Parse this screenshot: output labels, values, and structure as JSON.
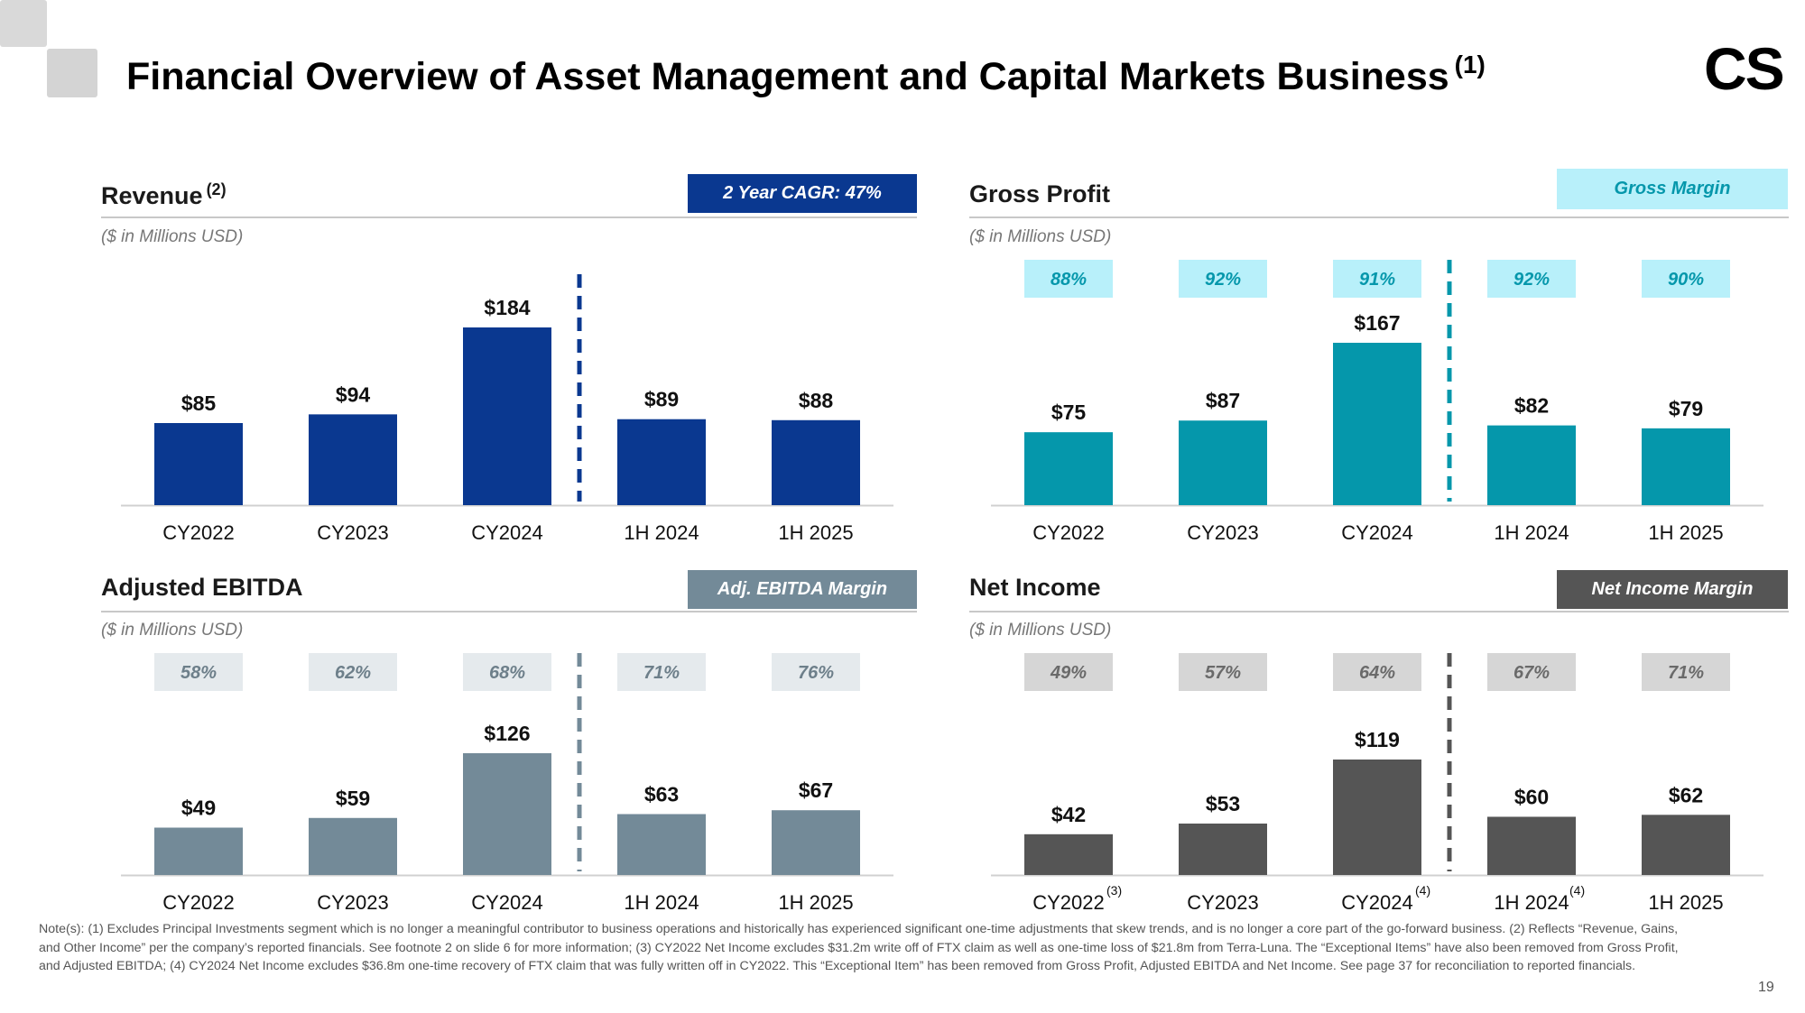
{
  "header": {
    "title": "Financial Overview of Asset Management and Capital Markets Business",
    "title_note": "(1)",
    "brand": "CS"
  },
  "colors": {
    "revenue": "#0a3890",
    "gross_profit": "#0597ab",
    "gross_margin_badge": "#b8f0fa",
    "ebitda": "#738a98",
    "ebitda_margin_badge": "#e5eaed",
    "net_income": "#555555",
    "net_margin_badge": "#d6d6d6"
  },
  "panels": {
    "revenue": {
      "title": "Revenue",
      "title_note": "(2)",
      "units": "($ in Millions USD)",
      "tag": "2 Year CAGR: 47%"
    },
    "gross_profit": {
      "title": "Gross Profit",
      "units": "($ in Millions USD)",
      "tag": "Gross Margin"
    },
    "ebitda": {
      "title": "Adjusted EBITDA",
      "units": "($ in Millions USD)",
      "tag": "Adj. EBITDA Margin"
    },
    "net_income": {
      "title": "Net Income",
      "units": "($ in Millions USD)",
      "tag": "Net Income Margin"
    }
  },
  "chart_data": [
    {
      "id": "revenue",
      "type": "bar",
      "title": "Revenue",
      "ylabel": "$ in Millions USD",
      "categories": [
        "CY2022",
        "CY2023",
        "CY2024",
        "1H 2024",
        "1H 2025"
      ],
      "category_notes": [
        "",
        "",
        "",
        "",
        ""
      ],
      "values": [
        85,
        94,
        184,
        89,
        88
      ],
      "value_labels": [
        "$85",
        "$94",
        "$184",
        "$89",
        "$88"
      ],
      "margins": [],
      "ylim": [
        0,
        184
      ]
    },
    {
      "id": "gross_profit",
      "type": "bar",
      "title": "Gross Profit",
      "ylabel": "$ in Millions USD",
      "categories": [
        "CY2022",
        "CY2023",
        "CY2024",
        "1H 2024",
        "1H 2025"
      ],
      "category_notes": [
        "",
        "",
        "",
        "",
        ""
      ],
      "values": [
        75,
        87,
        167,
        82,
        79
      ],
      "value_labels": [
        "$75",
        "$87",
        "$167",
        "$82",
        "$79"
      ],
      "margins": [
        "88%",
        "92%",
        "91%",
        "92%",
        "90%"
      ],
      "ylim": [
        0,
        167
      ]
    },
    {
      "id": "ebitda",
      "type": "bar",
      "title": "Adjusted EBITDA",
      "ylabel": "$ in Millions USD",
      "categories": [
        "CY2022",
        "CY2023",
        "CY2024",
        "1H 2024",
        "1H 2025"
      ],
      "category_notes": [
        "",
        "",
        "",
        "",
        ""
      ],
      "values": [
        49,
        59,
        126,
        63,
        67
      ],
      "value_labels": [
        "$49",
        "$59",
        "$126",
        "$63",
        "$67"
      ],
      "margins": [
        "58%",
        "62%",
        "68%",
        "71%",
        "76%"
      ],
      "ylim": [
        0,
        126
      ]
    },
    {
      "id": "net_income",
      "type": "bar",
      "title": "Net Income",
      "ylabel": "$ in Millions USD",
      "categories": [
        "CY2022",
        "CY2023",
        "CY2024",
        "1H 2024",
        "1H 2025"
      ],
      "category_notes": [
        "(3)",
        "",
        "(4)",
        "(4)",
        ""
      ],
      "values": [
        42,
        53,
        119,
        60,
        62
      ],
      "value_labels": [
        "$42",
        "$53",
        "$119",
        "$60",
        "$62"
      ],
      "margins": [
        "49%",
        "57%",
        "64%",
        "67%",
        "71%"
      ],
      "ylim": [
        0,
        119
      ]
    }
  ],
  "footnote": "Note(s): (1) Excludes Principal Investments segment which is no longer a meaningful contributor to business operations and historically has experienced significant one-time adjustments that skew trends, and is no longer a core part of the go-forward business. (2) Reflects “Revenue, Gains, and Other Income” per the company’s reported financials. See footnote 2 on slide 6 for more information; (3) CY2022 Net Income excludes $31.2m write off of FTX claim as well as one-time loss of $21.8m from Terra-Luna. The “Exceptional Items” have also been removed from Gross Profit, and Adjusted EBITDA; (4) CY2024 Net Income excludes $36.8m one-time recovery of FTX claim that was fully written off in CY2022. This “Exceptional Item” has been removed from Gross Profit, Adjusted EBITDA and Net Income. See page 37 for reconciliation to reported financials.",
  "page_number": "19"
}
